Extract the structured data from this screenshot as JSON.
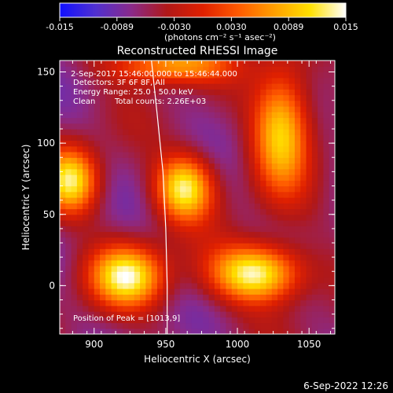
{
  "colorbar": {
    "ticks": [
      "-0.015",
      "-0.0089",
      "-0.0030",
      "0.0030",
      "0.0089",
      "0.015"
    ],
    "unit": "(photons cm⁻² s⁻¹ asec⁻²)",
    "range": [
      -0.015,
      0.015
    ],
    "stops": [
      "#1010ff",
      "#5030d0",
      "#8a2a8a",
      "#b01818",
      "#e02000",
      "#ff5a00",
      "#ff9f00",
      "#ffe000",
      "#ffffff"
    ]
  },
  "annotations": {
    "time": "2-Sep-2017 15:46:00.000 to 15:46:44.000",
    "detectors": "Detectors: 3F 6F 8F, All",
    "energy": "Energy Range: 25.0 - 50.0 keV",
    "method": "Clean",
    "counts": "Total counts: 2.26E+03",
    "peak": "Position of Peak = [1013,9]"
  },
  "footer": {
    "timestamp": "6-Sep-2022 12:26"
  },
  "chart_data": {
    "type": "heatmap",
    "title": "Reconstructed RHESSI Image",
    "xlabel": "Heliocentric X (arcsec)",
    "ylabel": "Heliocentric Y (arcsec)",
    "xlim": [
      876,
      1068
    ],
    "ylim": [
      -34,
      158
    ],
    "x_ticks": [
      "900",
      "950",
      "1000",
      "1050"
    ],
    "y_ticks": [
      "0",
      "50",
      "100",
      "150"
    ],
    "sources": [
      {
        "x": 923,
        "y": 7,
        "peak": 0.013,
        "sx": 18,
        "sy": 15
      },
      {
        "x": 1013,
        "y": 9,
        "peak": 0.015,
        "sx": 22,
        "sy": 14
      },
      {
        "x": 963,
        "y": 69,
        "peak": 0.013,
        "sx": 14,
        "sy": 16
      },
      {
        "x": 884,
        "y": 74,
        "peak": 0.012,
        "sx": 13,
        "sy": 16
      },
      {
        "x": 1031,
        "y": 110,
        "peak": 0.011,
        "sx": 14,
        "sy": 30
      },
      {
        "x": 953,
        "y": 155,
        "peak": 0.008,
        "sx": 28,
        "sy": 9
      }
    ],
    "limb_curve": {
      "x": [
        940,
        944,
        948,
        950,
        951,
        951
      ],
      "y": [
        158,
        120,
        80,
        40,
        0,
        -34
      ]
    }
  }
}
